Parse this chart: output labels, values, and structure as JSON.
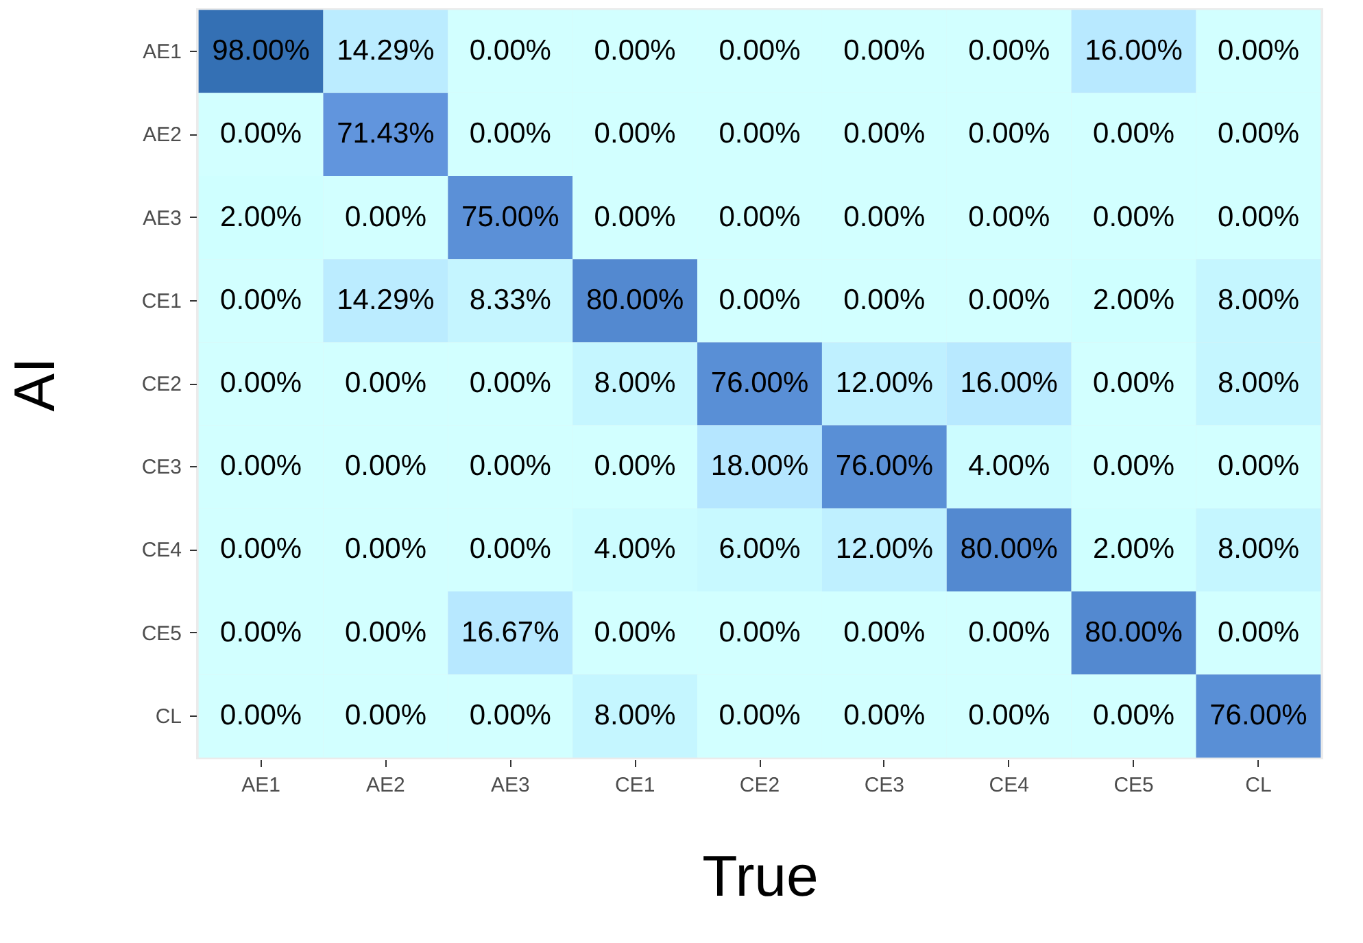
{
  "chart_data": {
    "type": "heatmap",
    "xlabel": "True",
    "ylabel": "AI",
    "categories": [
      "AE1",
      "AE2",
      "AE3",
      "CE1",
      "CE2",
      "CE3",
      "CE4",
      "CE5",
      "CL"
    ],
    "y_categories": [
      "AE1",
      "AE2",
      "AE3",
      "CE1",
      "CE2",
      "CE3",
      "CE4",
      "CE5",
      "CL"
    ],
    "cells": [
      [
        98,
        14.29,
        0,
        0,
        0,
        0,
        0,
        16,
        0
      ],
      [
        0,
        71.43,
        0,
        0,
        0,
        0,
        0,
        0,
        0
      ],
      [
        2,
        0,
        75,
        0,
        0,
        0,
        0,
        0,
        0
      ],
      [
        0,
        14.29,
        8.33,
        80,
        0,
        0,
        0,
        2,
        8
      ],
      [
        0,
        0,
        0,
        8,
        76,
        12,
        16,
        0,
        8
      ],
      [
        0,
        0,
        0,
        0,
        18,
        76,
        4,
        0,
        0
      ],
      [
        0,
        0,
        0,
        4,
        6,
        12,
        80,
        2,
        8
      ],
      [
        0,
        0,
        16.67,
        0,
        0,
        0,
        0,
        80,
        0
      ],
      [
        0,
        0,
        0,
        8,
        0,
        0,
        0,
        0,
        76
      ]
    ],
    "cell_labels": [
      [
        "98.00%",
        "14.29%",
        "0.00%",
        "0.00%",
        "0.00%",
        "0.00%",
        "0.00%",
        "16.00%",
        "0.00%"
      ],
      [
        "0.00%",
        "71.43%",
        "0.00%",
        "0.00%",
        "0.00%",
        "0.00%",
        "0.00%",
        "0.00%",
        "0.00%"
      ],
      [
        "2.00%",
        "0.00%",
        "75.00%",
        "0.00%",
        "0.00%",
        "0.00%",
        "0.00%",
        "0.00%",
        "0.00%"
      ],
      [
        "0.00%",
        "14.29%",
        "8.33%",
        "80.00%",
        "0.00%",
        "0.00%",
        "0.00%",
        "2.00%",
        "8.00%"
      ],
      [
        "0.00%",
        "0.00%",
        "0.00%",
        "8.00%",
        "76.00%",
        "12.00%",
        "16.00%",
        "0.00%",
        "8.00%"
      ],
      [
        "0.00%",
        "0.00%",
        "0.00%",
        "0.00%",
        "18.00%",
        "76.00%",
        "4.00%",
        "0.00%",
        "0.00%"
      ],
      [
        "0.00%",
        "0.00%",
        "0.00%",
        "4.00%",
        "6.00%",
        "12.00%",
        "80.00%",
        "2.00%",
        "8.00%"
      ],
      [
        "0.00%",
        "0.00%",
        "16.67%",
        "0.00%",
        "0.00%",
        "0.00%",
        "0.00%",
        "80.00%",
        "0.00%"
      ],
      [
        "0.00%",
        "0.00%",
        "0.00%",
        "8.00%",
        "0.00%",
        "0.00%",
        "0.00%",
        "0.00%",
        "76.00%"
      ]
    ]
  }
}
